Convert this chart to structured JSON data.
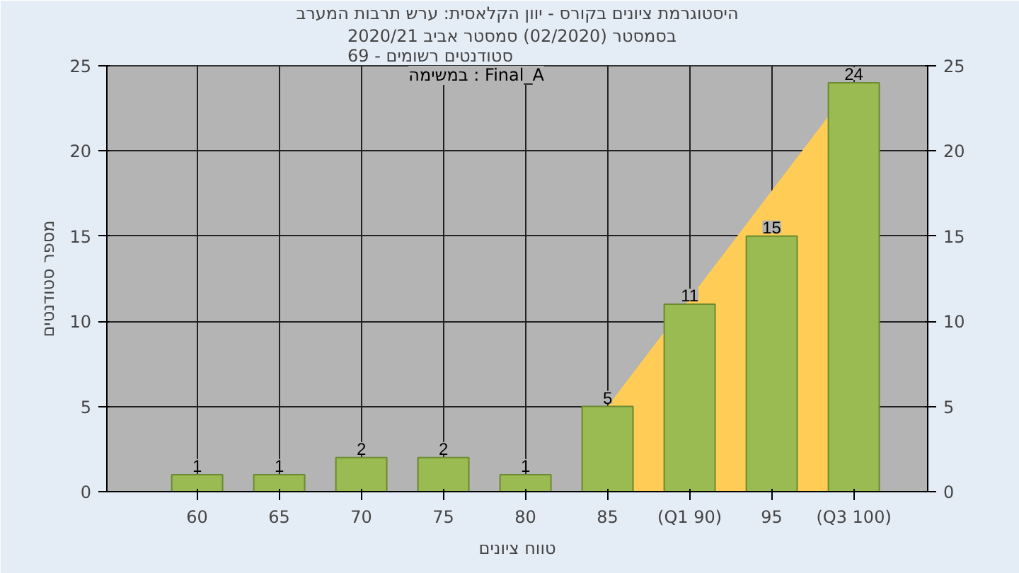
{
  "chart_data": {
    "type": "bar",
    "title": "היסטוגרמת ציונים בקורס - יוון הקלאסית: ערש תרבות המערב",
    "subtitle": "בסמסטר  (02/2020)  סמסטר אביב 2020/21\nסטודנטים רשומים - 69",
    "xlabel": "טווח ציונים",
    "ylabel": "מספר סטודנטים",
    "annotations": [
      "במשימה : Final_A"
    ],
    "categories": [
      "60",
      "65",
      "70",
      "75",
      "80",
      "85",
      "(Q1 90)",
      "95",
      "(Q3 100)"
    ],
    "series": [
      {
        "type": "area",
        "color": "#ffcc55",
        "values": [
          null,
          null,
          null,
          null,
          null,
          5,
          null,
          null,
          24
        ]
      },
      {
        "color": "#9aba52",
        "values": [
          1,
          1,
          2,
          2,
          1,
          5,
          11,
          15,
          24
        ],
        "value_labels": [
          "1",
          "1",
          "2",
          "2",
          "1",
          "5",
          "11",
          "15",
          "24"
        ]
      }
    ],
    "ylim": [
      0,
      25
    ],
    "yticks": [
      0,
      5,
      10,
      15,
      20,
      25
    ],
    "y2lim": [
      0,
      25
    ],
    "y2ticks": [
      0,
      5,
      10,
      15,
      20,
      25
    ],
    "grid": true
  }
}
